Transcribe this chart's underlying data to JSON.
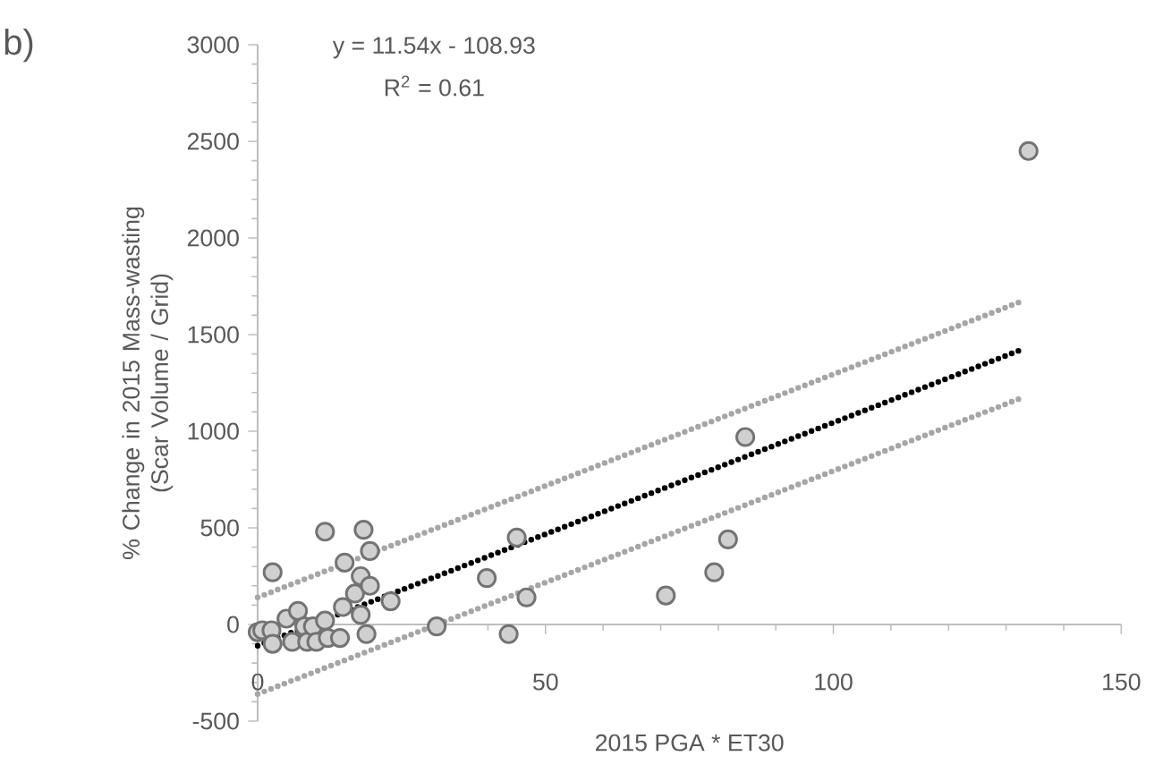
{
  "chart_data": {
    "type": "scatter",
    "xlabel": "2015 PGA * ET30",
    "ylabel": "% Change in 2015 Mass-wasting (Scar Volume / Grid)",
    "annotations": [
      "b)",
      "y = 11.54x - 108.93",
      "R$^{2}$ = 0.61"
    ],
    "xlim": [
      0,
      150
    ],
    "ylim": [
      -500,
      3000
    ],
    "xticks": [
      0,
      50,
      100,
      150
    ],
    "yticks": [
      -500,
      0,
      500,
      1000,
      1500,
      2000,
      2500,
      3000
    ],
    "series": [
      {
        "color": "#d0d0d0",
        "marker": "circle",
        "x": [
          0,
          0.8,
          2.4,
          2.6,
          2.6,
          5.0,
          6.0,
          7.0,
          8.1,
          8.6,
          9.6,
          10.2,
          11.7,
          11.7,
          12.2,
          14.3,
          14.8,
          15.1,
          16.9,
          17.9,
          17.9,
          18.4,
          18.9,
          19.5,
          19.5,
          23.1,
          31.1,
          39.8,
          43.6,
          45.0,
          46.7,
          70.9,
          79.3,
          81.7,
          84.7,
          133.9
        ],
        "values": [
          -40,
          -30,
          -30,
          -100,
          270,
          30,
          -90,
          70,
          -10,
          -90,
          -10,
          -90,
          480,
          20,
          -70,
          -70,
          90,
          320,
          160,
          250,
          50,
          490,
          -50,
          380,
          200,
          120,
          -10,
          240,
          -50,
          450,
          140,
          150,
          270,
          440,
          970,
          2450
        ]
      },
      {
        "type": "line",
        "color": "#000000",
        "line_style": "dotted",
        "marker": "none",
        "x": [
          0,
          132.5
        ],
        "values": [
          -110,
          1420
        ]
      },
      {
        "type": "line",
        "color": "#a6a6a6",
        "line_style": "dotted",
        "marker": "none",
        "x": [
          0,
          132.5
        ],
        "values": [
          140,
          1670
        ]
      },
      {
        "type": "line",
        "color": "#a6a6a6",
        "line_style": "dotted",
        "marker": "none",
        "x": [
          0,
          132.5
        ],
        "values": [
          -360,
          1170
        ]
      }
    ]
  }
}
